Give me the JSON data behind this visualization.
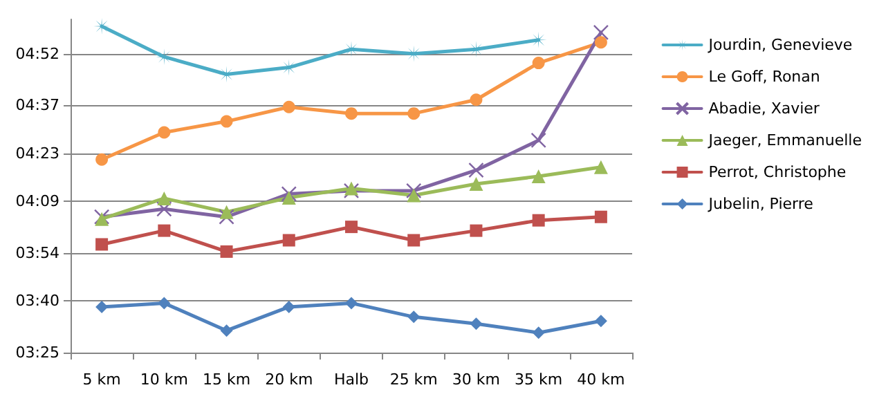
{
  "chart_data": {
    "type": "line",
    "categories": [
      "5 km",
      "10 km",
      "15 km",
      "20 km",
      "Halb",
      "25 km",
      "30 km",
      "35 km",
      "40 km"
    ],
    "ylim": [
      205,
      302
    ],
    "yticks": [
      {
        "value": 205,
        "label": "03:25"
      },
      {
        "value": 220,
        "label": "03:40"
      },
      {
        "value": 234,
        "label": "03:54"
      },
      {
        "value": 249,
        "label": "04:09"
      },
      {
        "value": 263,
        "label": "04:23"
      },
      {
        "value": 277,
        "label": "04:37"
      },
      {
        "value": 292,
        "label": "04:52"
      }
    ],
    "grid": "y",
    "legend": "right",
    "series": [
      {
        "name": "Jourdin, Genevieve",
        "color": "#4bacc6",
        "marker": "star",
        "values": [
          300.0,
          291.1,
          286.0,
          288.0,
          293.3,
          292.0,
          293.3,
          296.0,
          null
        ]
      },
      {
        "name": "Le Goff, Ronan",
        "color": "#f79646",
        "marker": "circle",
        "values": [
          261.2,
          269.1,
          272.3,
          276.5,
          274.6,
          274.6,
          278.6,
          289.3,
          295.3
        ]
      },
      {
        "name": "Abadie, Xavier",
        "color": "#8064a2",
        "marker": "cross",
        "values": [
          244.5,
          246.8,
          244.5,
          251.2,
          252.1,
          252.1,
          258.1,
          266.8,
          298.2
        ]
      },
      {
        "name": "Jaeger, Emmanuelle",
        "color": "#9bbb59",
        "marker": "triangle",
        "values": [
          243.9,
          249.9,
          245.9,
          250.1,
          252.8,
          250.8,
          254.1,
          256.3,
          259.0
        ]
      },
      {
        "name": "Perrot, Christophe",
        "color": "#c0504d",
        "marker": "square",
        "values": [
          236.5,
          240.5,
          234.4,
          237.7,
          241.6,
          237.7,
          240.5,
          243.5,
          244.5
        ]
      },
      {
        "name": "Jubelin, Pierre",
        "color": "#4f81bd",
        "marker": "diamond",
        "values": [
          218.3,
          219.4,
          211.4,
          218.3,
          219.4,
          215.4,
          213.4,
          210.8,
          214.2
        ]
      }
    ]
  }
}
